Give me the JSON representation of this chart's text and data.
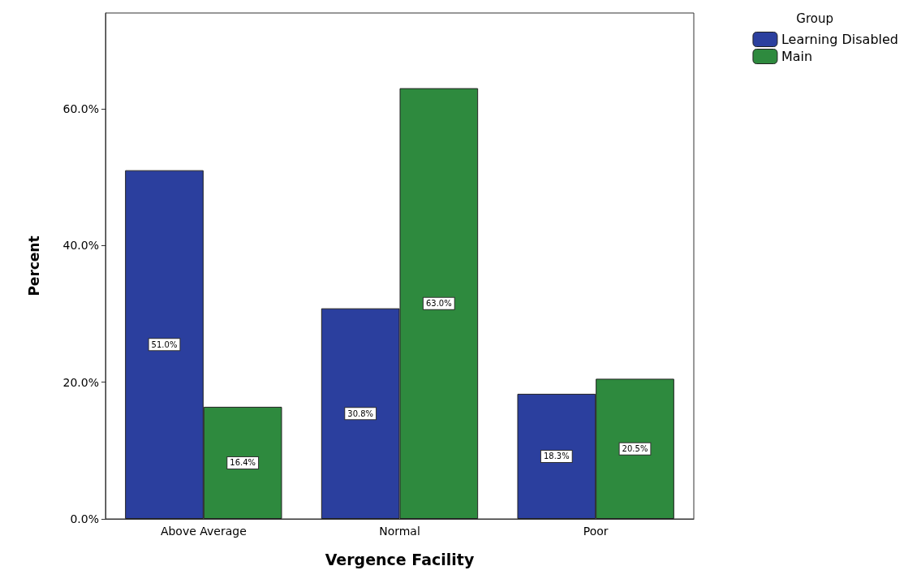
{
  "chart_data": {
    "type": "bar",
    "xlabel": "Vergence Facility",
    "ylabel": "Percent",
    "legend_title": "Group",
    "legend": "top right",
    "categories": [
      "Above Average",
      "Normal",
      "Poor"
    ],
    "series": [
      {
        "name": "Learning Disabled",
        "color": "#2b3f9e",
        "values": [
          51.0,
          30.8,
          18.3
        ],
        "value_labels": [
          "51.0%",
          "30.8%",
          "18.3%"
        ]
      },
      {
        "name": "Main",
        "color": "#2e8a3e",
        "values": [
          16.4,
          63.0,
          20.5
        ],
        "value_labels": [
          "16.4%",
          "63.0%",
          "20.5%"
        ]
      }
    ],
    "ylim": [
      0,
      74
    ],
    "yticks": [
      {
        "value": 0,
        "label": "0.0%"
      },
      {
        "value": 20,
        "label": "20.0%"
      },
      {
        "value": 40,
        "label": "40.0%"
      },
      {
        "value": 60,
        "label": "60.0%"
      }
    ],
    "grid": false
  }
}
